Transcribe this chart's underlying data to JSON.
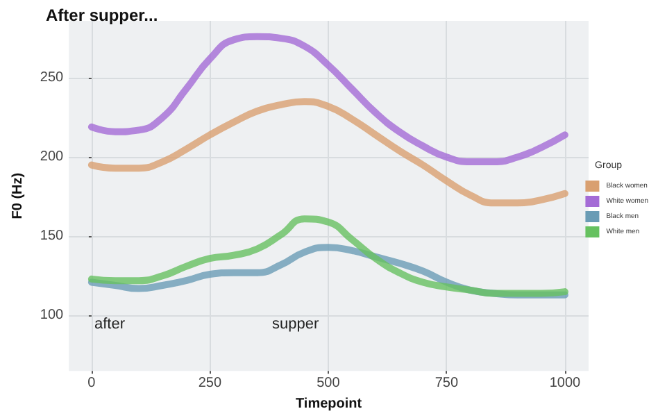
{
  "chart_data": {
    "type": "line",
    "title": "After supper...",
    "xlabel": "Timepoint",
    "ylabel": "F0 (Hz)",
    "legend_title": "Group",
    "x": [
      0,
      50,
      100,
      150,
      200,
      250,
      300,
      350,
      400,
      450,
      500,
      550,
      600,
      650,
      700,
      750,
      800,
      850,
      900,
      950,
      1000
    ],
    "series": [
      {
        "name": "Black women",
        "color": "#d9a070",
        "values": [
          195,
          193,
          193,
          197,
          205,
          214,
          222,
          229,
          233,
          235,
          232,
          224,
          214,
          204,
          195,
          185,
          176,
          171,
          171,
          173,
          177
        ]
      },
      {
        "name": "White women",
        "color": "#a46bd6",
        "values": [
          219,
          216,
          217,
          225,
          243,
          262,
          274,
          276,
          275,
          270,
          258,
          243,
          228,
          216,
          207,
          200,
          197,
          197,
          200,
          206,
          214
        ]
      },
      {
        "name": "Black men",
        "color": "#6a9cb5",
        "values": [
          121,
          119,
          117,
          119,
          122,
          126,
          127,
          127,
          132,
          140,
          143,
          141,
          137,
          133,
          128,
          121,
          116,
          114,
          113,
          113,
          113
        ]
      },
      {
        "name": "White men",
        "color": "#66c160",
        "values": [
          123,
          122,
          122,
          125,
          131,
          136,
          138,
          142,
          151,
          161,
          159,
          148,
          136,
          127,
          121,
          118,
          116,
          114,
          114,
          114,
          115
        ]
      }
    ],
    "annotations": [
      "after",
      "supper"
    ],
    "xlim": [
      -48,
      1050
    ],
    "xticks": [
      0,
      250,
      500,
      750,
      1000
    ],
    "ylim": [
      65,
      286
    ],
    "yticks": [
      100,
      150,
      200,
      250
    ],
    "grid": true,
    "legend": "right",
    "marker": "none",
    "line_style": "solid"
  }
}
